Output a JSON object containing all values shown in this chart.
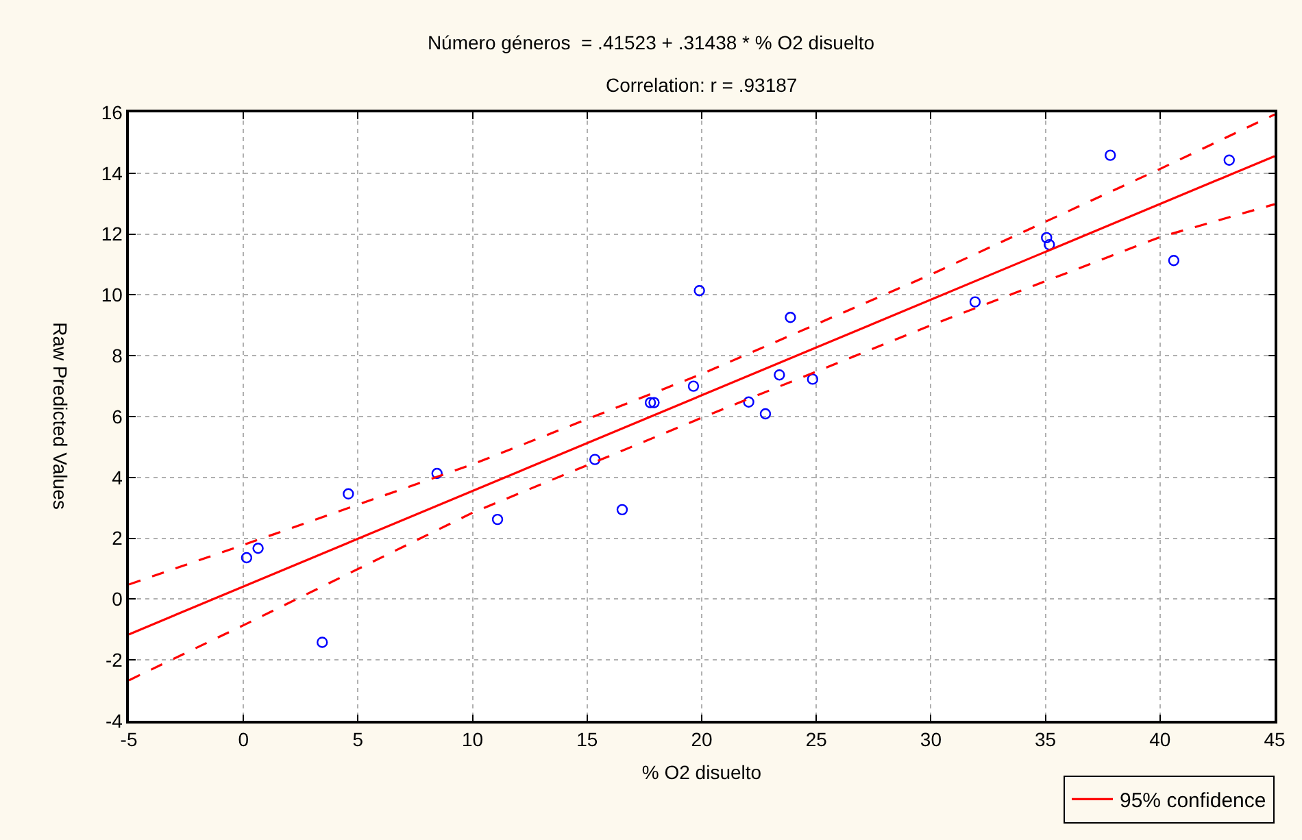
{
  "chart_data": {
    "type": "scatter",
    "title": "Número géneros  = .41523 + .31438 * % O2 disuelto",
    "subtitle": "Correlation: r = .93187",
    "xlabel": "% O2 disuelto",
    "ylabel": "Raw Predicted Values",
    "xlim": [
      -5,
      45
    ],
    "xticks": [
      -5,
      0,
      5,
      10,
      15,
      20,
      25,
      30,
      35,
      40,
      45
    ],
    "ylim": [
      -4,
      16
    ],
    "yticks": [
      -4,
      -2,
      0,
      2,
      4,
      6,
      8,
      10,
      12,
      14,
      16
    ],
    "grid": true,
    "legend": "bottom right",
    "marker": "circle",
    "series": [
      {
        "color": "#0000ff",
        "x": [
          0.14,
          0.64,
          3.44,
          4.58,
          8.45,
          11.09,
          15.34,
          16.53,
          17.76,
          17.92,
          19.64,
          19.9,
          22.05,
          22.78,
          23.39,
          23.87,
          24.84,
          31.93,
          35.05,
          35.17,
          37.83,
          40.6,
          43.02
        ],
        "values": [
          1.36,
          1.67,
          -1.42,
          3.46,
          4.13,
          2.62,
          4.59,
          2.94,
          6.46,
          6.46,
          7.0,
          10.14,
          6.48,
          6.09,
          7.37,
          9.26,
          7.23,
          9.77,
          11.88,
          11.65,
          14.59,
          11.13,
          14.43
        ]
      },
      {
        "type": "line",
        "name": "95% confidence",
        "color": "#ff0000",
        "line_style": "solid",
        "marker": "none",
        "x": [
          -5,
          45
        ],
        "values": [
          -1.16,
          14.56
        ]
      },
      {
        "type": "line",
        "color": "#ff0000",
        "line_style": "dashed",
        "marker": "none",
        "x": [
          -5,
          0,
          10,
          20,
          30,
          40,
          45
        ],
        "values": [
          0.48,
          1.78,
          4.43,
          7.4,
          10.67,
          14.14,
          15.93
        ]
      },
      {
        "type": "line",
        "color": "#ff0000",
        "line_style": "dashed",
        "marker": "none",
        "x": [
          -5,
          0,
          10,
          20,
          30,
          40,
          45
        ],
        "values": [
          -2.67,
          -0.86,
          2.84,
          5.96,
          9.0,
          11.9,
          12.98
        ]
      }
    ]
  }
}
